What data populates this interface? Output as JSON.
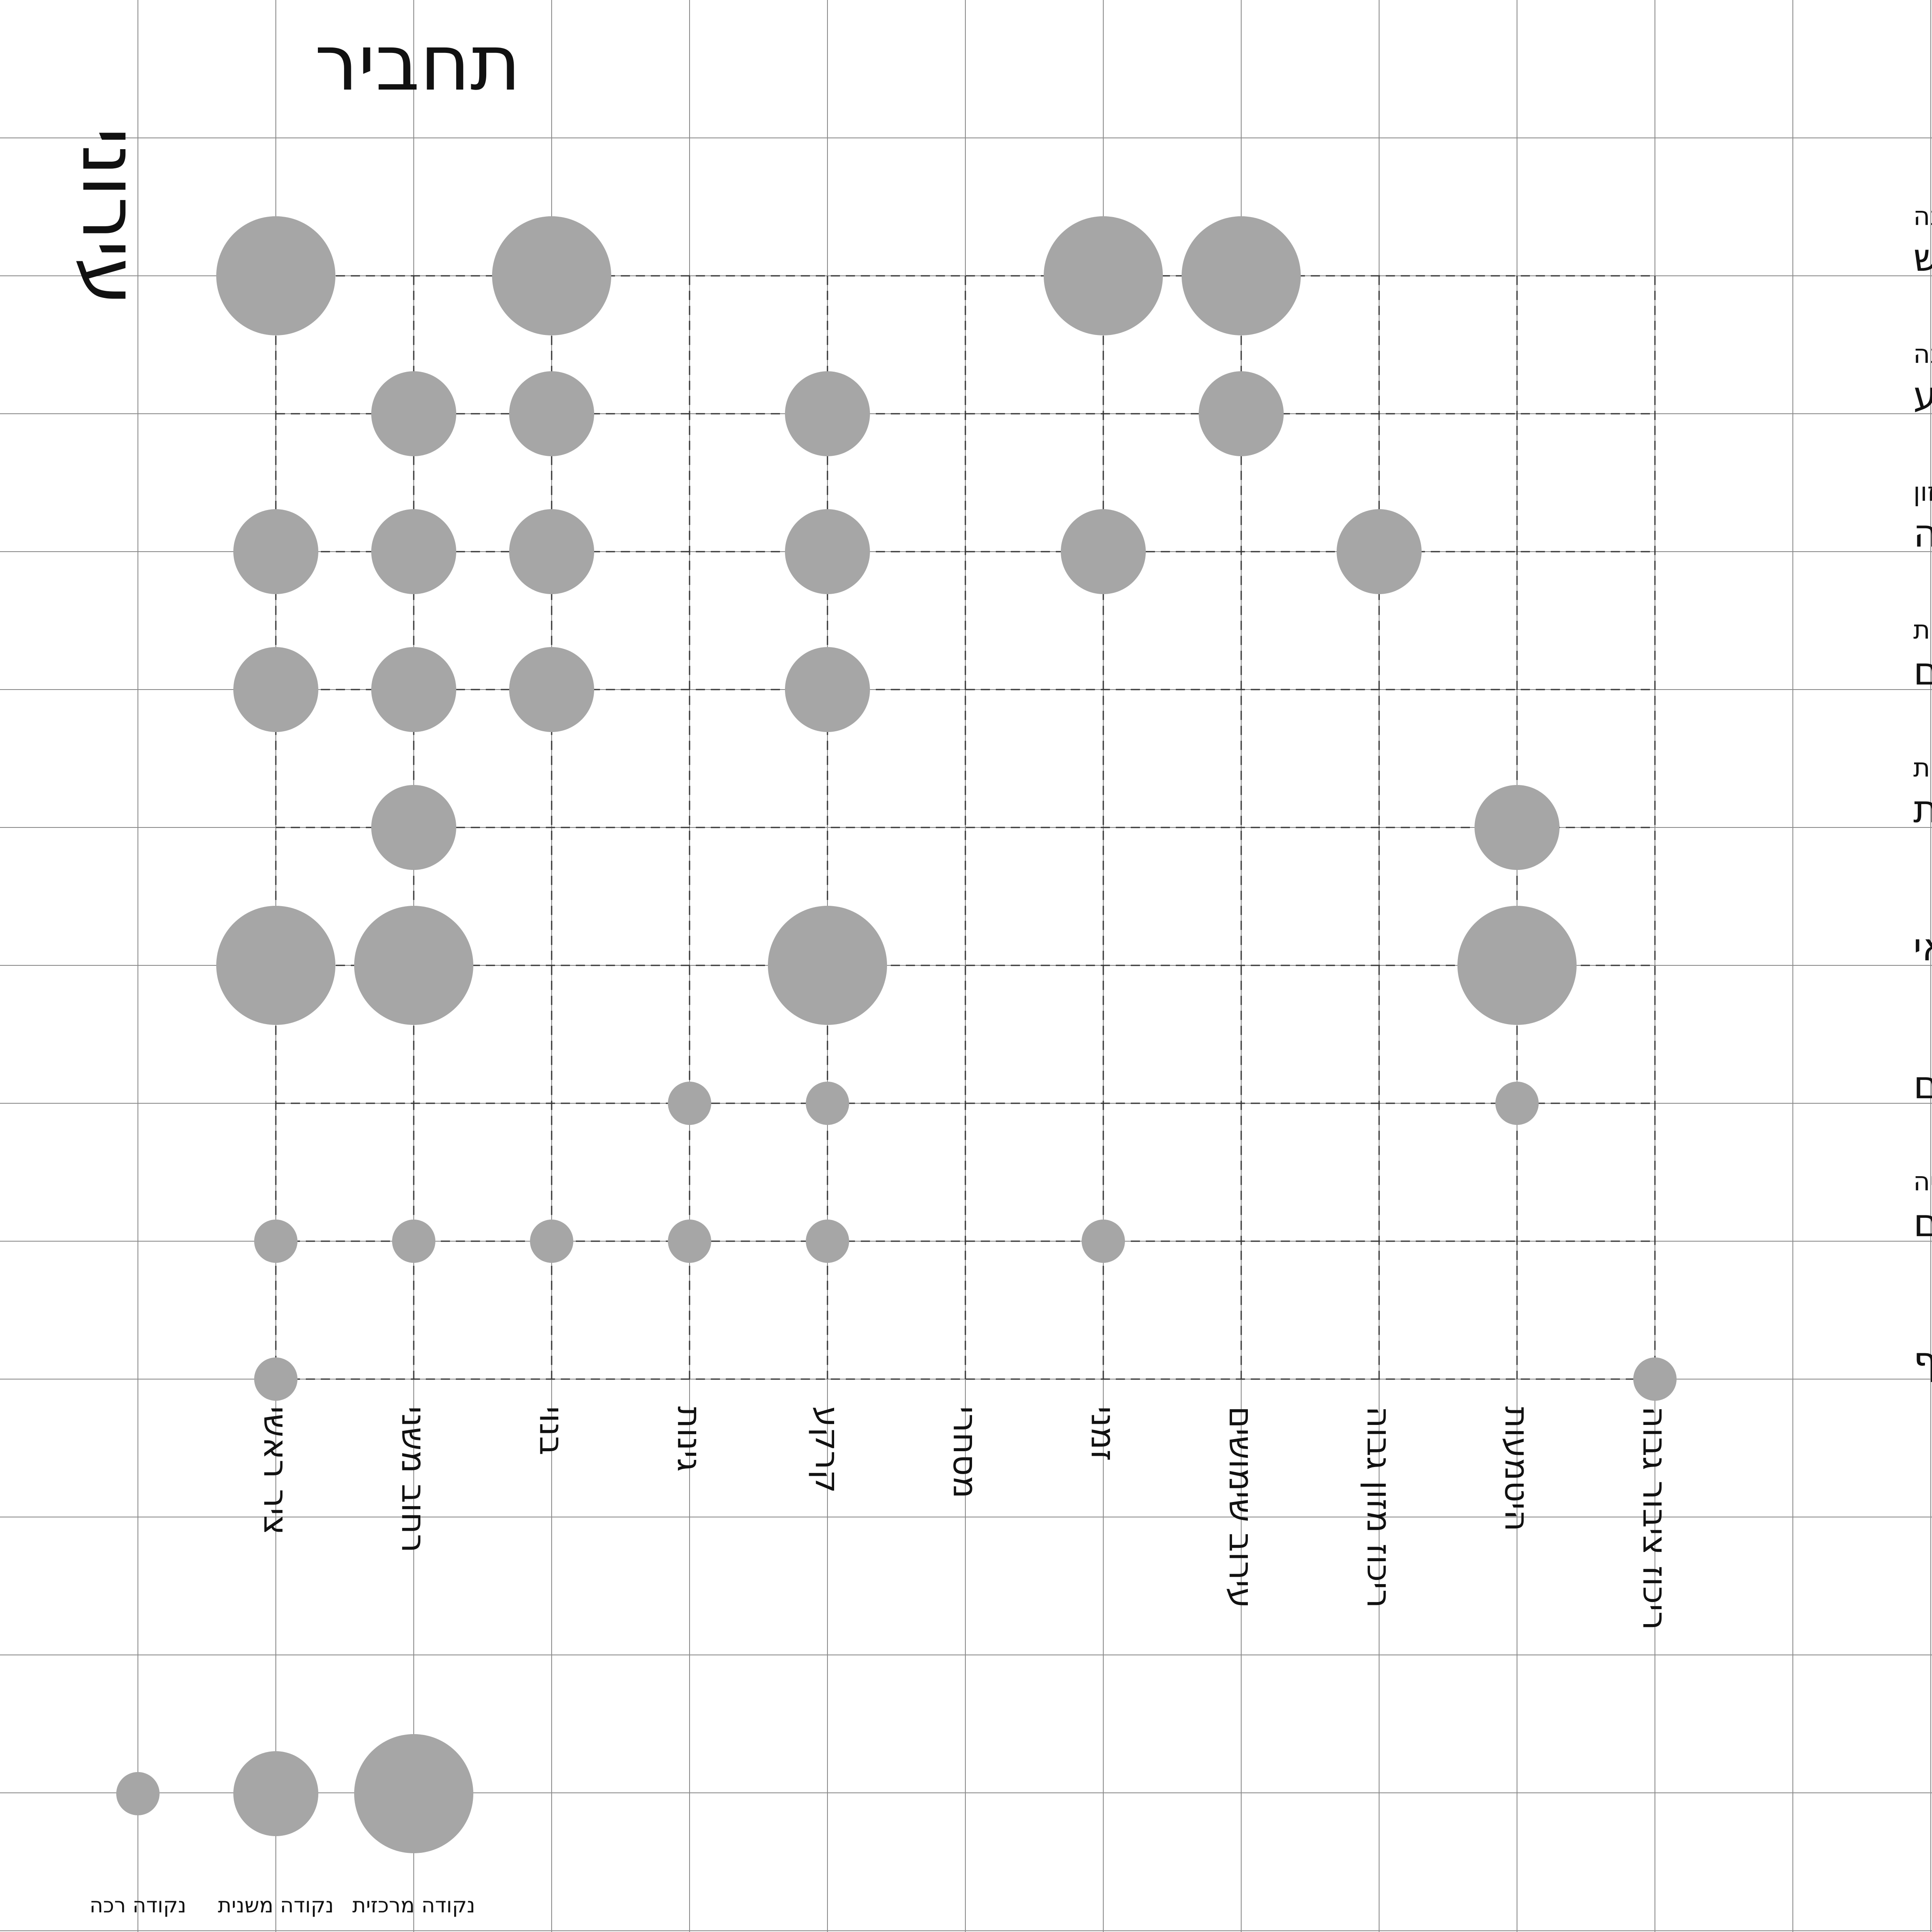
{
  "title": "תחביר",
  "subtitle": "עירוני",
  "chart_data": {
    "type": "scatter",
    "rows": [
      {
        "main": "מבנה נטוש",
        "sub": "לינה"
      },
      {
        "main": "הקצאה בקרקע",
        "sub": "לינה"
      },
      {
        "main": "עמדת חלוקה",
        "sub": "מזון"
      },
      {
        "main": "שירותים",
        "sub": "התרעננות"
      },
      {
        "main": "מקלחת",
        "sub": "התרעננות"
      },
      {
        "main": "סיוע רפואי",
        "sub": ""
      },
      {
        "main": "מים",
        "sub": ""
      },
      {
        "main": "אובייקטים",
        "sub": "שהייה"
      },
      {
        "main": "כסף",
        "sub": ""
      }
    ],
    "columns": [
      "ציר ראשי",
      "רחוב משני",
      "בנוי",
      "גינות",
      "קרקע",
      "מסחרי",
      "זמני",
      "עירוב שימושים",
      "ריכוז מזון גבוה",
      "היטמעות",
      "ריכוז ציבור גבוה"
    ],
    "size_levels": {
      "1": "נקודה רכה",
      "2": "נקודה משנית",
      "3": "נקודה מרכזית"
    },
    "points": [
      {
        "row": 0,
        "col": 0,
        "size": 3
      },
      {
        "row": 0,
        "col": 2,
        "size": 3
      },
      {
        "row": 0,
        "col": 6,
        "size": 3
      },
      {
        "row": 0,
        "col": 7,
        "size": 3
      },
      {
        "row": 1,
        "col": 1,
        "size": 2
      },
      {
        "row": 1,
        "col": 2,
        "size": 2
      },
      {
        "row": 1,
        "col": 4,
        "size": 2
      },
      {
        "row": 1,
        "col": 7,
        "size": 2
      },
      {
        "row": 2,
        "col": 0,
        "size": 2
      },
      {
        "row": 2,
        "col": 1,
        "size": 2
      },
      {
        "row": 2,
        "col": 2,
        "size": 2
      },
      {
        "row": 2,
        "col": 4,
        "size": 2
      },
      {
        "row": 2,
        "col": 6,
        "size": 2
      },
      {
        "row": 2,
        "col": 8,
        "size": 2
      },
      {
        "row": 3,
        "col": 0,
        "size": 2
      },
      {
        "row": 3,
        "col": 1,
        "size": 2
      },
      {
        "row": 3,
        "col": 2,
        "size": 2
      },
      {
        "row": 3,
        "col": 4,
        "size": 2
      },
      {
        "row": 4,
        "col": 1,
        "size": 2
      },
      {
        "row": 4,
        "col": 9,
        "size": 2
      },
      {
        "row": 5,
        "col": 0,
        "size": 3
      },
      {
        "row": 5,
        "col": 1,
        "size": 3
      },
      {
        "row": 5,
        "col": 4,
        "size": 3
      },
      {
        "row": 5,
        "col": 9,
        "size": 3
      },
      {
        "row": 6,
        "col": 3,
        "size": 1
      },
      {
        "row": 6,
        "col": 4,
        "size": 1
      },
      {
        "row": 6,
        "col": 9,
        "size": 1
      },
      {
        "row": 7,
        "col": 0,
        "size": 1
      },
      {
        "row": 7,
        "col": 1,
        "size": 1
      },
      {
        "row": 7,
        "col": 2,
        "size": 1
      },
      {
        "row": 7,
        "col": 3,
        "size": 1
      },
      {
        "row": 7,
        "col": 4,
        "size": 1
      },
      {
        "row": 7,
        "col": 6,
        "size": 1
      },
      {
        "row": 8,
        "col": 0,
        "size": 1
      },
      {
        "row": 8,
        "col": 10,
        "size": 1
      }
    ],
    "legend": [
      {
        "label": "נקודה רכה",
        "size": 1
      },
      {
        "label": "נקודה משנית",
        "size": 2
      },
      {
        "label": "נקודה מרכזית",
        "size": 3
      }
    ],
    "grid": true
  },
  "colors": {
    "dot": "#a6a6a6",
    "grid": "#8a8a8a",
    "dash": "#333333",
    "text": "#111111"
  }
}
